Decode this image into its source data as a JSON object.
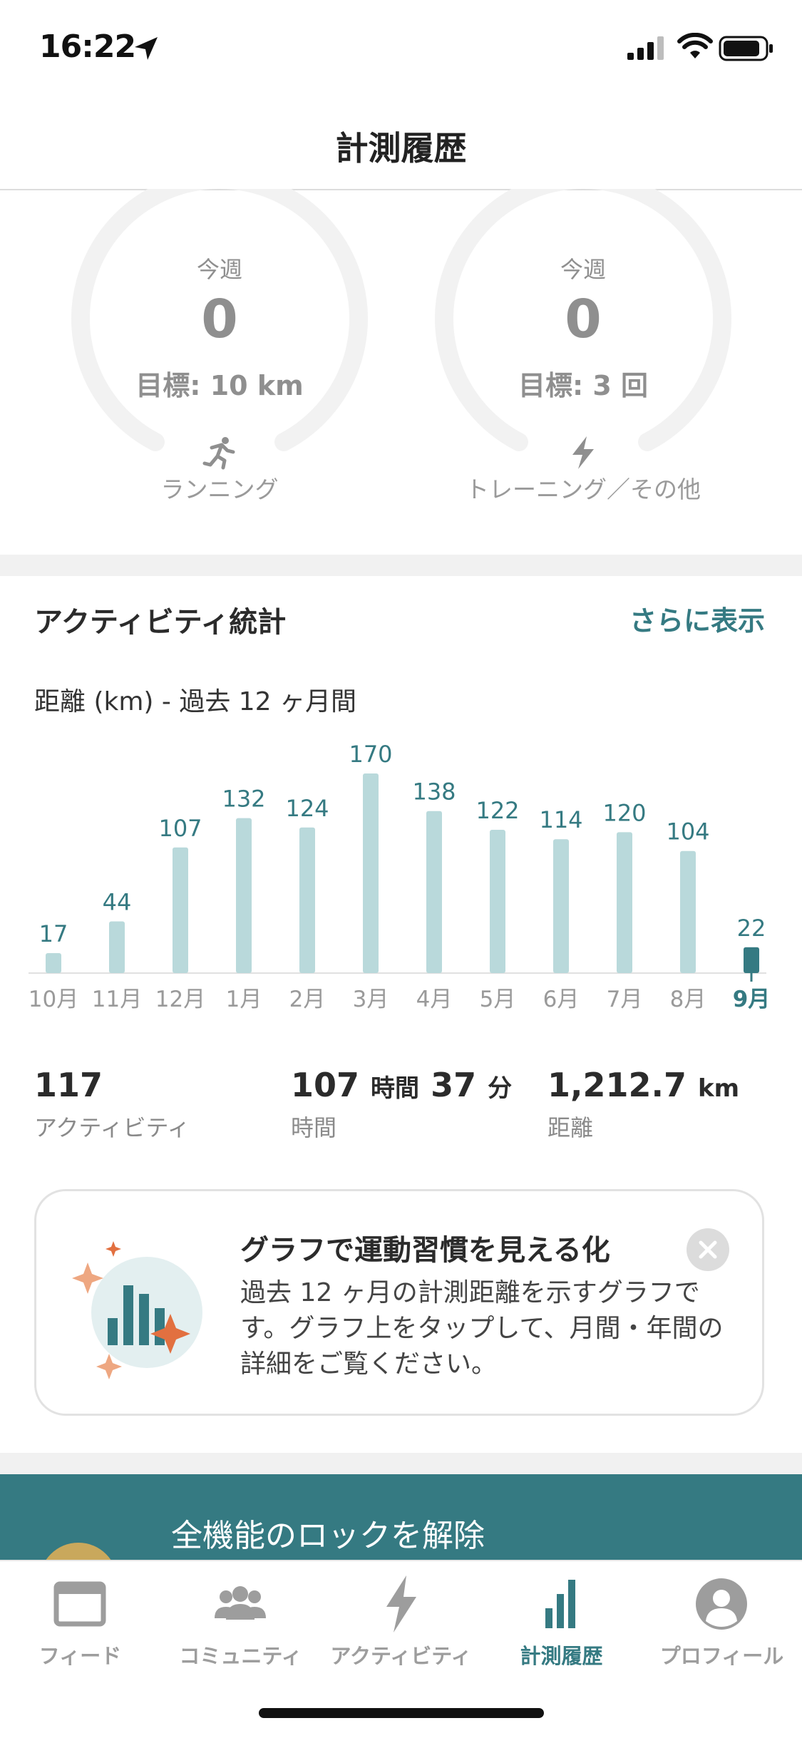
{
  "status_bar": {
    "time": "16:22"
  },
  "header": {
    "title": "計測履歴"
  },
  "goals": [
    {
      "period": "今週",
      "value": "0",
      "goal": "目標: 10 km",
      "label": "ランニング",
      "icon": "running-icon"
    },
    {
      "period": "今週",
      "value": "0",
      "goal": "目標: 3 回",
      "label": "トレーニング／その他",
      "icon": "lightning-icon"
    }
  ],
  "activity_stats": {
    "title": "アクティビティ統計",
    "show_more": "さらに表示",
    "subtitle": "距離 (km) - 過去 12 ヶ月間"
  },
  "chart_data": {
    "type": "bar",
    "title": "",
    "xlabel": "",
    "ylabel": "距離 (km)",
    "categories": [
      "10月",
      "11月",
      "12月",
      "1月",
      "2月",
      "3月",
      "4月",
      "5月",
      "6月",
      "7月",
      "8月",
      "9月"
    ],
    "values": [
      17,
      44,
      107,
      132,
      124,
      170,
      138,
      122,
      114,
      120,
      104,
      22
    ],
    "highlight_index": 11,
    "ylim": [
      0,
      170
    ],
    "grid": false,
    "colors": {
      "bar": "#b9d9db",
      "highlight": "#357a82",
      "label": "#357a82",
      "axis_label": "#9a9a9a"
    }
  },
  "summary": {
    "activities": {
      "value": "117",
      "label": "アクティビティ"
    },
    "time": {
      "hours": "107",
      "hours_unit": "時間",
      "minutes": "37",
      "minutes_unit": "分",
      "label": "時間"
    },
    "distance": {
      "value": "1,212.7",
      "unit": "km",
      "label": "距離"
    }
  },
  "info_card": {
    "title": "グラフで運動習慣を見える化",
    "body": "過去 12 ヶ月の計測距離を示すグラフです。グラフ上をタップして、月間・年間の詳細をご覧ください。"
  },
  "unlock_banner": {
    "text": "全機能のロックを解除"
  },
  "tabs": [
    {
      "label": "フィード",
      "icon": "feed-icon",
      "active": false
    },
    {
      "label": "コミュニティ",
      "icon": "community-icon",
      "active": false
    },
    {
      "label": "アクティビティ",
      "icon": "lightning-icon",
      "active": false
    },
    {
      "label": "計測履歴",
      "icon": "history-chart-icon",
      "active": true
    },
    {
      "label": "プロフィール",
      "icon": "profile-icon",
      "active": false
    }
  ],
  "theme": {
    "accent": "#357a82",
    "ring": "#f2f2f2",
    "muted": "#8f8f8f"
  }
}
